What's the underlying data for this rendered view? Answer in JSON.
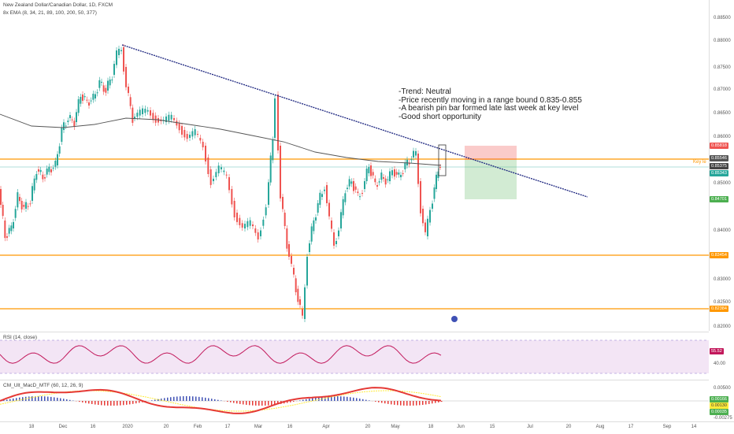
{
  "symbol": {
    "title": "New Zealand Dollar/Canadian Dollar, 1D, FXCM",
    "indicator": "8x EMA (8, 34, 21, 89, 100, 200, 50, 377)"
  },
  "annotation": {
    "lines": [
      "-Trend: Neutral",
      "-Price recently moving in a range bound 0.835-0.855",
      "-A bearish pin bar formed late last week at key level",
      "-Good short opportunity"
    ],
    "key_level_label": "Key le"
  },
  "price_axis": {
    "ticks": [
      "0.88500",
      "0.88000",
      "0.87500",
      "0.87000",
      "0.86500",
      "0.86000",
      "0.85500",
      "0.85000",
      "0.84500",
      "0.84000",
      "0.83500",
      "0.83000",
      "0.82500",
      "0.82000"
    ]
  },
  "badges": [
    {
      "text": "0.85818",
      "color": "#ef5350"
    },
    {
      "text": "0.85546",
      "color": "#555555"
    },
    {
      "text": "0.85375",
      "color": "#444444"
    },
    {
      "text": "0.85343",
      "color": "#26a69a"
    },
    {
      "text": "0.84701",
      "color": "#4caf50"
    },
    {
      "text": "0.83454",
      "color": "#ff9800"
    },
    {
      "text": "0.82384",
      "color": "#ff9800"
    }
  ],
  "rsi": {
    "label": "RSI (14, close)",
    "value_badge": "55.52",
    "ticks": [
      "40.00"
    ],
    "color": "#c2185b"
  },
  "macd": {
    "label": "CM_Ult_MacD_MTF (60, 12, 26, 9)",
    "ticks": [
      "0.00500",
      "0.00000",
      "-0.00275"
    ],
    "badges": [
      {
        "text": "0.00166",
        "color": "#4caf50"
      },
      {
        "text": "0.00130",
        "color": "#ffeb3b"
      },
      {
        "text": "0.00035",
        "color": "#4caf50"
      }
    ],
    "tick_bottom": "-0.00275"
  },
  "time_axis": {
    "ticks": [
      "18",
      "Dec",
      "16",
      "2020",
      "20",
      "Feb",
      "17",
      "Mar",
      "16",
      "Apr",
      "20",
      "May",
      "18",
      "Jun",
      "15",
      "Jul",
      "20",
      "Aug",
      "17",
      "Sep",
      "14"
    ]
  },
  "colors": {
    "bull": "#26a69a",
    "bear": "#ef5350",
    "level": "#ff9800",
    "trendline": "#1a237e",
    "ema": "#555555",
    "rsi_band": "#f3e5f5"
  }
}
